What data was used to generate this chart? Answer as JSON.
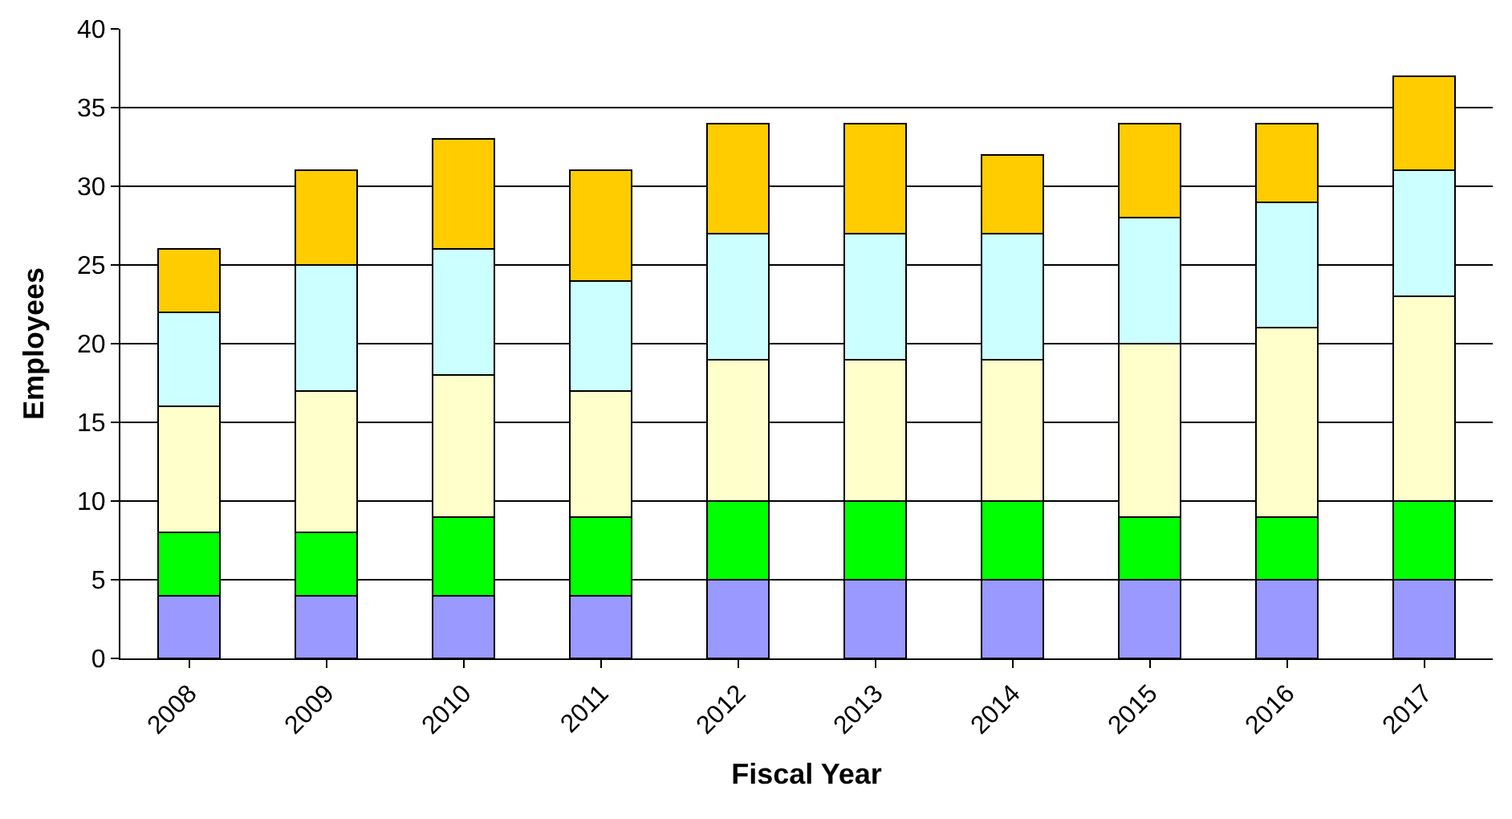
{
  "chart_data": {
    "type": "bar",
    "stacked": true,
    "xlabel": "Fiscal Year",
    "ylabel": "Employees",
    "categories": [
      "2008",
      "2009",
      "2010",
      "2011",
      "2012",
      "2013",
      "2014",
      "2015",
      "2016",
      "2017"
    ],
    "series": [
      {
        "color": "#9999ff",
        "values": [
          4,
          4,
          4,
          4,
          5,
          5,
          5,
          5,
          5,
          5
        ]
      },
      {
        "color": "#00ff00",
        "values": [
          4,
          4,
          5,
          5,
          5,
          5,
          5,
          4,
          4,
          5
        ]
      },
      {
        "color": "#ffffcc",
        "values": [
          8,
          9,
          9,
          8,
          9,
          9,
          9,
          11,
          12,
          13
        ]
      },
      {
        "color": "#ccffff",
        "values": [
          6,
          8,
          8,
          7,
          8,
          8,
          8,
          8,
          8,
          8
        ]
      },
      {
        "color": "#ffcc00",
        "values": [
          4,
          6,
          7,
          7,
          7,
          7,
          5,
          6,
          5,
          6
        ]
      }
    ],
    "ylim": [
      0,
      40
    ],
    "yticks": [
      0,
      5,
      10,
      15,
      20,
      25,
      30,
      35,
      40
    ],
    "grid": "y"
  }
}
